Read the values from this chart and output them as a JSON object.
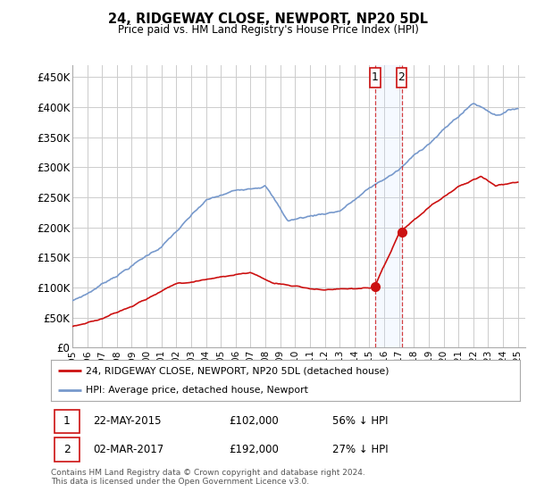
{
  "title": "24, RIDGEWAY CLOSE, NEWPORT, NP20 5DL",
  "subtitle": "Price paid vs. HM Land Registry's House Price Index (HPI)",
  "ylim": [
    0,
    470000
  ],
  "yticks": [
    0,
    50000,
    100000,
    150000,
    200000,
    250000,
    300000,
    350000,
    400000,
    450000
  ],
  "ytick_labels": [
    "£0",
    "£50K",
    "£100K",
    "£150K",
    "£200K",
    "£250K",
    "£300K",
    "£350K",
    "£400K",
    "£450K"
  ],
  "xlim_start": 1995.0,
  "xlim_end": 2025.5,
  "hpi_color": "#7799cc",
  "price_color": "#cc1111",
  "t1x": 2015.38,
  "t2x": 2017.17,
  "t1y": 102000,
  "t2y": 192000,
  "legend_label_red": "24, RIDGEWAY CLOSE, NEWPORT, NP20 5DL (detached house)",
  "legend_label_blue": "HPI: Average price, detached house, Newport",
  "table_row1": [
    "1",
    "22-MAY-2015",
    "£102,000",
    "56% ↓ HPI"
  ],
  "table_row2": [
    "2",
    "02-MAR-2017",
    "£192,000",
    "27% ↓ HPI"
  ],
  "footnote": "Contains HM Land Registry data © Crown copyright and database right 2024.\nThis data is licensed under the Open Government Licence v3.0.",
  "bg_color": "#ffffff",
  "grid_color": "#cccccc",
  "highlight_color": "#ddeeff"
}
